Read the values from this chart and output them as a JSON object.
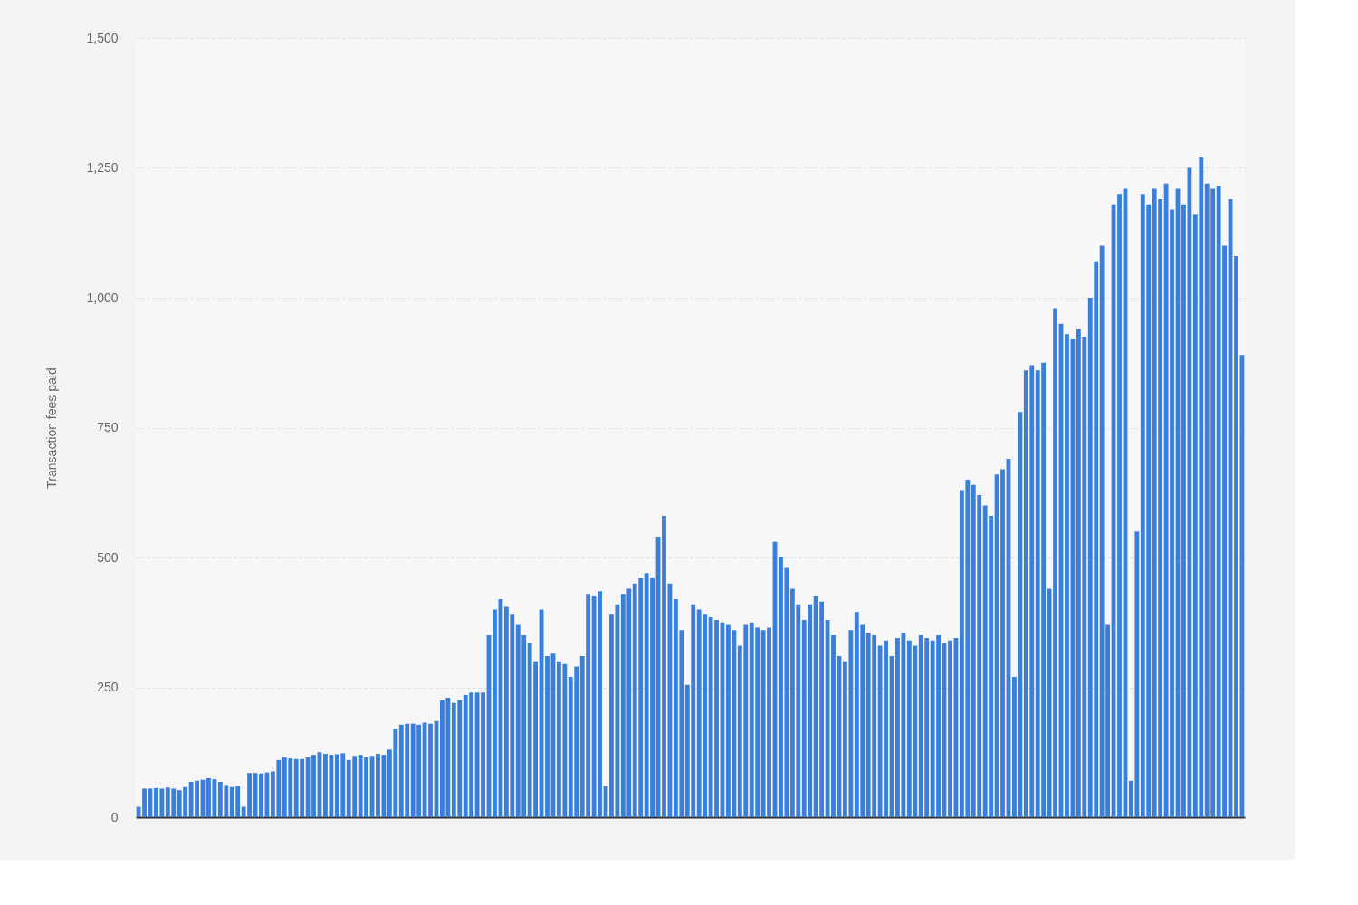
{
  "chart_data": {
    "type": "bar",
    "ylabel": "Transaction fees paid",
    "color": "#3a7fdb",
    "categories": [
      null,
      null,
      null,
      null,
      null,
      null,
      null,
      null,
      null,
      null,
      null,
      null,
      null,
      null,
      null,
      null,
      null,
      null,
      null,
      null,
      null,
      null,
      null,
      null,
      null,
      null,
      null,
      null,
      null,
      null,
      null,
      null,
      null,
      null,
      null,
      null,
      null,
      null,
      null,
      null,
      null,
      null,
      null,
      null,
      null,
      null,
      null,
      null,
      null,
      null,
      null,
      null,
      null,
      null,
      null,
      null,
      null,
      null,
      null,
      null,
      null,
      null,
      null,
      null,
      null,
      null,
      null,
      null,
      null,
      null,
      null,
      null,
      null,
      null,
      null,
      null,
      null,
      null,
      null,
      null,
      null,
      null,
      null,
      null,
      null,
      null,
      null,
      null,
      null,
      null,
      null,
      null,
      null,
      null,
      null,
      null,
      null,
      null,
      null,
      null,
      null,
      null,
      null,
      null,
      null,
      null,
      null,
      null,
      null,
      null,
      null,
      null,
      null,
      null,
      null,
      null,
      null,
      null,
      null,
      null,
      null,
      null,
      null,
      null,
      null,
      null,
      null,
      null,
      null,
      null,
      null,
      null,
      null,
      null,
      null,
      null,
      null,
      null,
      null,
      null,
      null,
      null,
      null,
      null,
      null,
      null,
      null,
      null,
      null,
      null,
      null,
      null,
      null,
      null,
      null,
      null,
      null,
      null,
      null,
      null,
      null,
      null,
      null,
      null,
      null,
      null,
      null,
      null,
      null,
      null,
      null,
      null,
      null,
      null,
      null,
      null,
      null,
      null,
      null,
      null,
      null,
      null,
      null,
      null,
      null,
      null,
      null,
      null,
      null,
      null
    ],
    "values": [
      20,
      55,
      55,
      56,
      55,
      57,
      55,
      52,
      58,
      68,
      70,
      72,
      75,
      73,
      68,
      62,
      58,
      60,
      20,
      85,
      85,
      84,
      86,
      88,
      110,
      115,
      113,
      112,
      112,
      115,
      120,
      125,
      122,
      120,
      121,
      123,
      110,
      118,
      120,
      115,
      118,
      122,
      120,
      130,
      170,
      178,
      180,
      180,
      178,
      182,
      180,
      185,
      225,
      230,
      220,
      225,
      235,
      240,
      240,
      240,
      350,
      400,
      420,
      405,
      390,
      370,
      350,
      335,
      300,
      400,
      310,
      315,
      300,
      295,
      270,
      290,
      310,
      430,
      425,
      435,
      60,
      390,
      410,
      430,
      440,
      450,
      460,
      470,
      460,
      540,
      580,
      450,
      420,
      360,
      255,
      410,
      400,
      390,
      385,
      380,
      375,
      370,
      360,
      330,
      370,
      375,
      365,
      360,
      365,
      530,
      500,
      480,
      440,
      410,
      380,
      410,
      425,
      415,
      380,
      350,
      310,
      300,
      360,
      395,
      370,
      355,
      350,
      330,
      340,
      310,
      345,
      355,
      340,
      330,
      350,
      345,
      340,
      350,
      335,
      340,
      345,
      630,
      650,
      640,
      620,
      600,
      580,
      660,
      670,
      690,
      270,
      780,
      860,
      870,
      860,
      875,
      440,
      980,
      950,
      930,
      920,
      940,
      925,
      1000,
      1070,
      1100,
      370,
      1180,
      1200,
      1210,
      70,
      550,
      1200,
      1180,
      1210,
      1190,
      1220,
      1170,
      1210,
      1180,
      1250,
      1160,
      1270,
      1220,
      1210,
      1215,
      1100,
      1190,
      1080,
      890
    ],
    "ylim": [
      0,
      1500
    ],
    "yticks": [
      0,
      250,
      500,
      750,
      {
        "value": 1000,
        "label": "1,000"
      },
      {
        "value": 1250,
        "label": "1,250"
      },
      {
        "value": 1500,
        "label": "1,500"
      }
    ],
    "grid": "y",
    "tick_labels": "y"
  }
}
